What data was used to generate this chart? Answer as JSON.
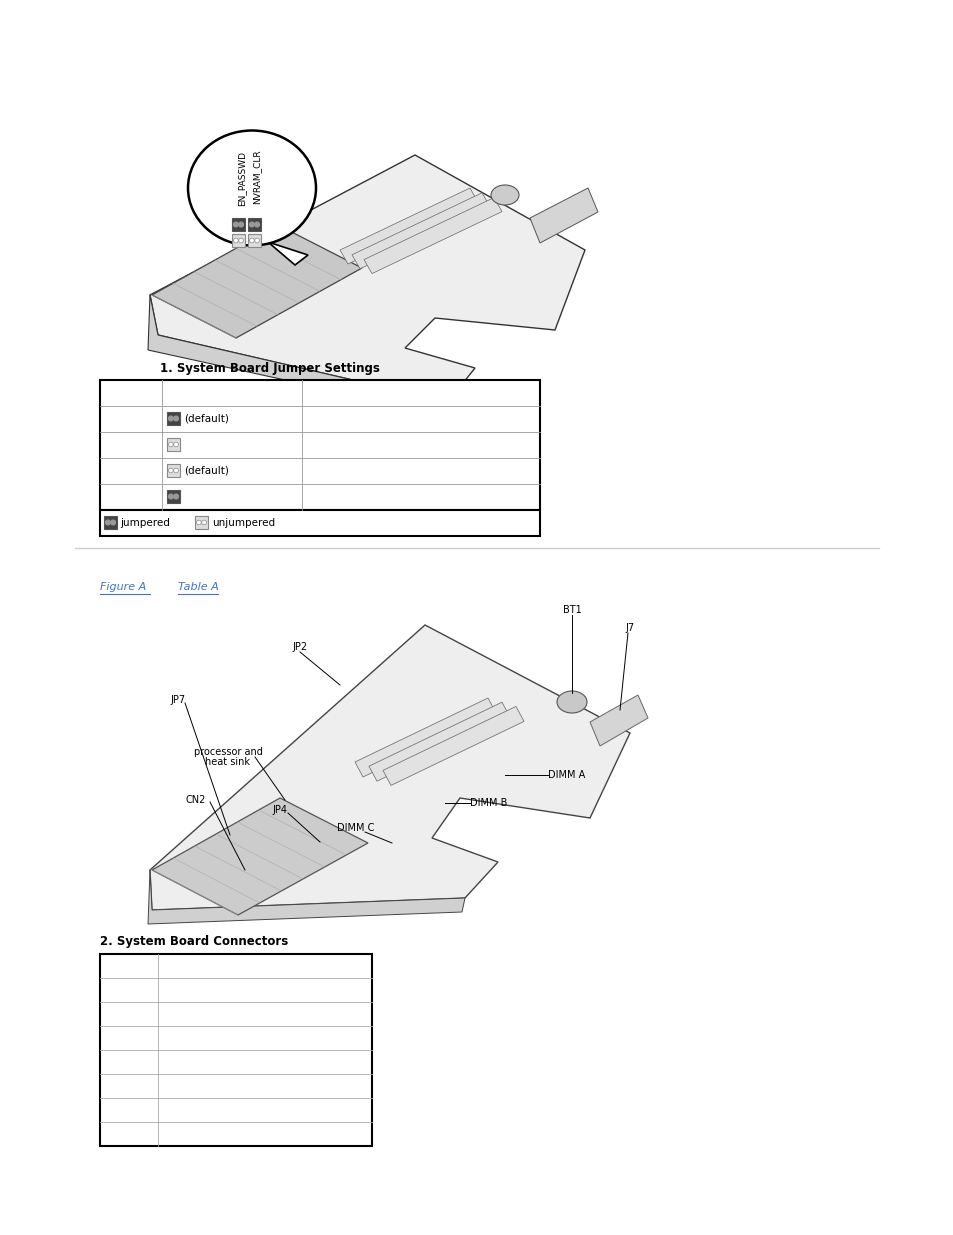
{
  "bg_color": "#ffffff",
  "table1_title": "1. System Board Jumper Settings",
  "table1_title_fontsize": 8.5,
  "table2_title": "2. System Board Connectors",
  "table2_rows": 8,
  "link_color": "#4472C4",
  "figure_a_text": "Figure A",
  "table_a_text": "Table A  ",
  "separator_color": "#cccccc",
  "callout_text1": "EN_PASSWD",
  "callout_text2": "NVRAM_CLR"
}
